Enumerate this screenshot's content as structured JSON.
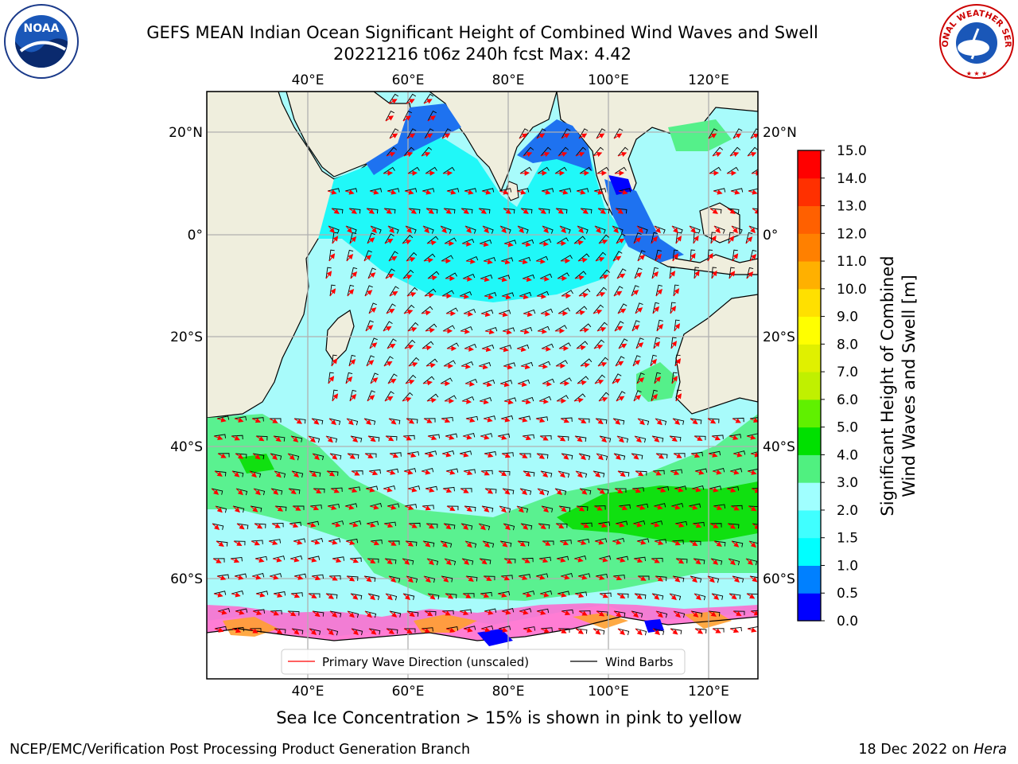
{
  "header": {
    "title_line1": "GEFS MEAN Indian Ocean Significant Height of Combined Wind Waves and Swell",
    "title_line2": "20221216 t06z 240h fcst   Max: 4.42"
  },
  "logos": {
    "left": {
      "name": "noaa-logo",
      "text": "NOAA"
    },
    "right": {
      "name": "national-weather-service-logo",
      "text": "NATIONAL WEATHER SERVICE"
    }
  },
  "map": {
    "lon_ticks": [
      "40°E",
      "60°E",
      "80°E",
      "100°E",
      "120°E"
    ],
    "lat_ticks": [
      "20°N",
      "0°",
      "20°S",
      "40°S",
      "60°S"
    ],
    "colors": {
      "land": "#efeedd",
      "grid": "#b0b0b0",
      "coast": "#000000",
      "ice_white": "#ffffff",
      "ice_pink": "#ff66cc",
      "ice_orange": "#ffa030"
    }
  },
  "legend": {
    "primary_wave": "Primary Wave Direction (unscaled)",
    "wind_barbs": "Wind Barbs"
  },
  "colorbar": {
    "title_line1": "Significant Height of Combined",
    "title_line2": "Wind Waves and Swell [m]",
    "ticks": [
      "0.0",
      "0.5",
      "1.0",
      "1.5",
      "2.0",
      "3.0",
      "4.0",
      "5.0",
      "6.0",
      "7.0",
      "8.0",
      "9.0",
      "10.0",
      "11.0",
      "12.0",
      "13.0",
      "14.0",
      "15.0"
    ],
    "colors": [
      "#0000ff",
      "#0080ff",
      "#00ffff",
      "#40ffff",
      "#a0ffff",
      "#50f080",
      "#00e000",
      "#60f000",
      "#c0f000",
      "#e0f000",
      "#ffff00",
      "#ffe000",
      "#ffb000",
      "#ff8000",
      "#ff6000",
      "#ff3000",
      "#ff0000"
    ]
  },
  "footer": {
    "note": "Sea Ice Concentration > 15% is shown in pink to yellow",
    "credit_left": "NCEP/EMC/Verification Post Processing Product Generation Branch",
    "credit_right_date": "18 Dec 2022 on ",
    "credit_right_host": "Hera"
  }
}
